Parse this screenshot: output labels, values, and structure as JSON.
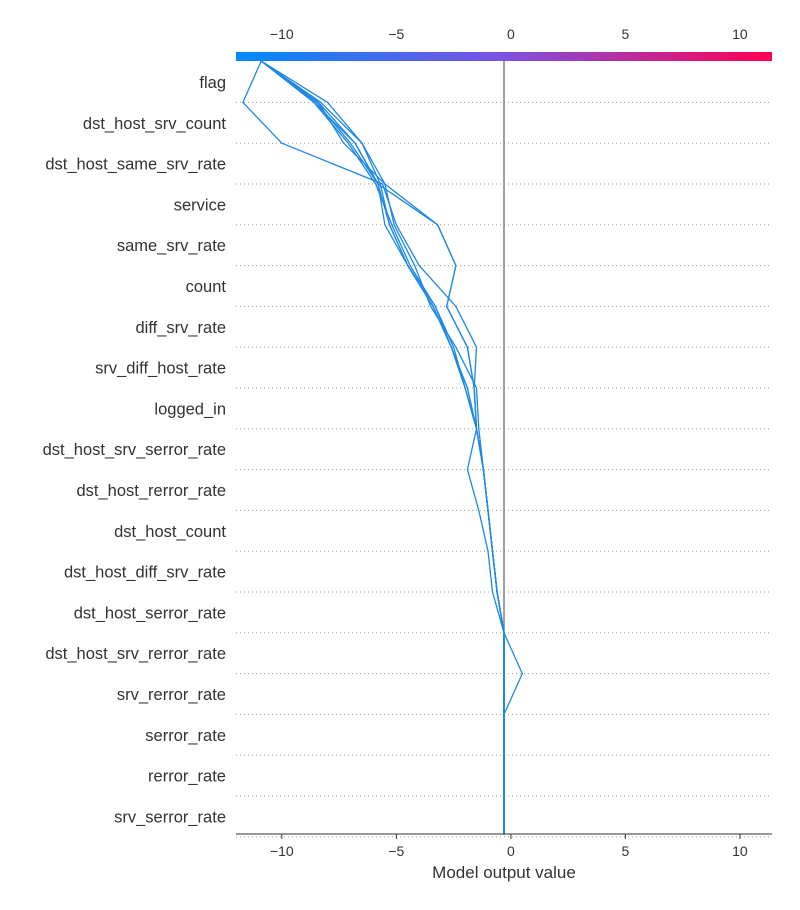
{
  "chart_data": {
    "type": "line",
    "chart_kind": "shap-decision-plot",
    "xlabel": "Model output value",
    "xlim": [
      -12.0,
      11.4
    ],
    "xticks": [
      -10,
      -5,
      0,
      5,
      10
    ],
    "x_tick_labels": [
      "−10",
      "−5",
      "0",
      "5",
      "10"
    ],
    "base_value": -0.3,
    "grid": "dotted horizontal lines per feature",
    "colorbar": {
      "position": "top",
      "colors": [
        "#008bfb",
        "#7d52e0",
        "#ff0052"
      ],
      "range": [
        -12.0,
        11.4
      ]
    },
    "line_color": "#1e88e5",
    "features": [
      "flag",
      "dst_host_srv_count",
      "dst_host_same_srv_rate",
      "service",
      "same_srv_rate",
      "count",
      "diff_srv_rate",
      "srv_diff_host_rate",
      "logged_in",
      "dst_host_srv_serror_rate",
      "dst_host_rerror_rate",
      "dst_host_count",
      "dst_host_diff_srv_rate",
      "dst_host_serror_rate",
      "dst_host_srv_rerror_rate",
      "srv_rerror_rate",
      "serror_rate",
      "rerror_rate",
      "srv_serror_rate"
    ],
    "series": [
      {
        "values": [
          -10.9,
          -11.7,
          -10.0,
          -5.6,
          -5.0,
          -4.0,
          -2.4,
          -1.5,
          -1.6,
          -1.5,
          -1.9,
          -1.4,
          -1.0,
          -0.8,
          -0.3,
          0.5,
          -0.3,
          -0.3,
          -0.3,
          -0.3
        ]
      },
      {
        "values": [
          -10.9,
          -8.0,
          -6.5,
          -5.5,
          -3.2,
          -2.4,
          -2.8,
          -1.9,
          -1.6,
          -1.5,
          -1.2,
          -1.0,
          -0.8,
          -0.6,
          -0.3,
          -0.3,
          -0.3,
          -0.3,
          -0.3,
          -0.3
        ]
      },
      {
        "values": [
          -10.9,
          -8.6,
          -6.8,
          -5.8,
          -3.2,
          -2.4,
          -2.8,
          -1.9,
          -1.6,
          -1.5,
          -1.2,
          -1.0,
          -0.8,
          -0.6,
          -0.3,
          -0.3,
          -0.3,
          -0.3,
          -0.3,
          -0.3
        ]
      },
      {
        "values": [
          -10.9,
          -8.6,
          -7.1,
          -5.9,
          -5.2,
          -4.4,
          -3.3,
          -2.6,
          -1.9,
          -1.5,
          -1.2,
          -1.0,
          -0.8,
          -0.6,
          -0.3,
          -0.3,
          -0.3,
          -0.3,
          -0.3,
          -0.3
        ]
      },
      {
        "values": [
          -10.9,
          -8.5,
          -7.0,
          -5.8,
          -5.3,
          -4.5,
          -3.4,
          -2.6,
          -1.9,
          -1.5,
          -1.2,
          -1.0,
          -0.8,
          -0.6,
          -0.3,
          -0.3,
          -0.3,
          -0.3,
          -0.3,
          -0.3
        ]
      },
      {
        "values": [
          -10.9,
          -8.4,
          -6.8,
          -5.8,
          -5.5,
          -4.5,
          -3.4,
          -2.6,
          -2.0,
          -1.5,
          -1.2,
          -1.0,
          -0.8,
          -0.6,
          -0.3,
          -0.3,
          -0.3,
          -0.3,
          -0.3,
          -0.3
        ]
      },
      {
        "values": [
          -10.9,
          -8.3,
          -6.5,
          -5.7,
          -5.3,
          -4.5,
          -3.3,
          -2.5,
          -2.0,
          -1.5,
          -1.2,
          -1.0,
          -0.8,
          -0.6,
          -0.3,
          -0.3,
          -0.3,
          -0.3,
          -0.3,
          -0.3
        ]
      },
      {
        "values": [
          -10.9,
          -8.4,
          -7.3,
          -5.5,
          -5.1,
          -4.2,
          -3.5,
          -2.4,
          -1.5,
          -1.4,
          -1.2,
          -1.0,
          -0.8,
          -0.6,
          -0.3,
          -0.3,
          -0.3,
          -0.3,
          -0.3,
          -0.3
        ]
      }
    ]
  }
}
